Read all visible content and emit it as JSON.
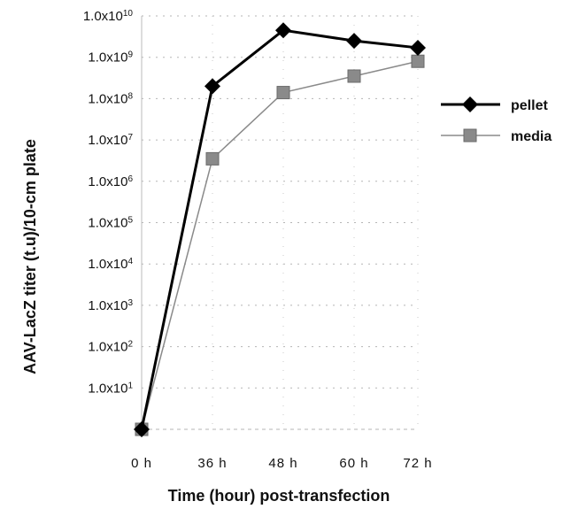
{
  "chart_data": {
    "type": "line",
    "categories": [
      "0 h",
      "36 h",
      "48 h",
      "60 h",
      "72 h"
    ],
    "xlabel": "Time (hour) post-transfection",
    "ylabel": "AAV-LacZ titer (t.u)/10-cm plate",
    "yscale": "log",
    "ylim": [
      1,
      10000000000
    ],
    "y_ticks": [
      {
        "label_base": "1.0x10",
        "exp": "1",
        "value": 10
      },
      {
        "label_base": "1.0x10",
        "exp": "2",
        "value": 100
      },
      {
        "label_base": "1.0x10",
        "exp": "3",
        "value": 1000
      },
      {
        "label_base": "1.0x10",
        "exp": "4",
        "value": 10000
      },
      {
        "label_base": "1.0x10",
        "exp": "5",
        "value": 100000
      },
      {
        "label_base": "1.0x10",
        "exp": "6",
        "value": 1000000
      },
      {
        "label_base": "1.0x10",
        "exp": "7",
        "value": 10000000
      },
      {
        "label_base": "1.0x10",
        "exp": "8",
        "value": 100000000
      },
      {
        "label_base": "1.0x10",
        "exp": "9",
        "value": 1000000000
      },
      {
        "label_base": "1.0x10",
        "exp": "10",
        "value": 10000000000
      }
    ],
    "grid": true,
    "legend_position": "right",
    "series": [
      {
        "name": "pellet",
        "marker": "diamond",
        "color": "#000000",
        "values": [
          1,
          200000000,
          4500000000,
          2500000000,
          1700000000
        ]
      },
      {
        "name": "media",
        "marker": "square",
        "color": "#8a8a8a",
        "values": [
          1,
          3500000,
          140000000,
          350000000,
          800000000
        ]
      }
    ]
  }
}
